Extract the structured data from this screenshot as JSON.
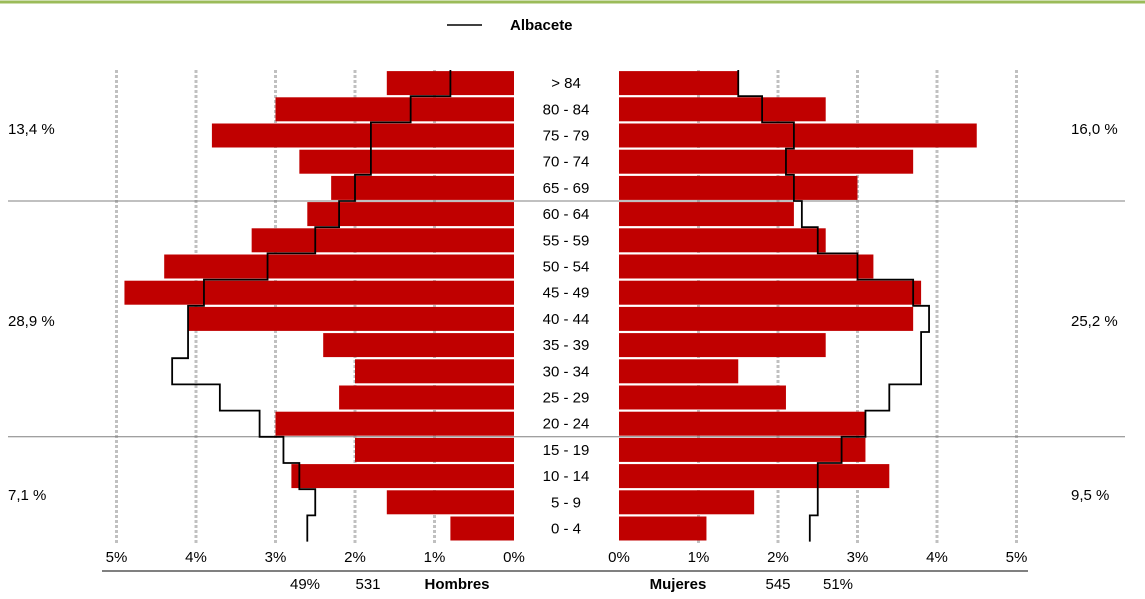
{
  "chart_data": {
    "type": "bar",
    "legend": {
      "label": "Albacete",
      "position": "top"
    },
    "age_groups": [
      "> 84",
      "80 - 84",
      "75 - 79",
      "70 - 74",
      "65 - 69",
      "60 - 64",
      "55 - 59",
      "50 - 54",
      "45 - 49",
      "40 - 44",
      "35 - 39",
      "30 - 34",
      "25 - 29",
      "20 - 24",
      "15 - 19",
      "10 - 14",
      "5 - 9",
      "0 - 4"
    ],
    "x_ticks_left": [
      "5%",
      "4%",
      "3%",
      "2%",
      "1%",
      "0%"
    ],
    "x_ticks_right": [
      "0%",
      "1%",
      "2%",
      "3%",
      "4%",
      "5%"
    ],
    "xlim": [
      0,
      5
    ],
    "grid": true,
    "series": [
      {
        "name": "Hombres",
        "side": "left",
        "values": [
          1.6,
          3.0,
          3.8,
          2.7,
          2.3,
          2.6,
          3.3,
          4.4,
          4.9,
          4.1,
          2.4,
          2.0,
          2.2,
          3.0,
          2.0,
          2.8,
          1.6,
          0.8
        ]
      },
      {
        "name": "Mujeres",
        "side": "right",
        "values": [
          1.5,
          2.6,
          4.5,
          3.7,
          3.0,
          2.2,
          2.6,
          3.2,
          3.8,
          3.7,
          2.6,
          1.5,
          2.1,
          3.1,
          3.1,
          3.4,
          1.7,
          1.1
        ]
      }
    ],
    "reference_series": [
      {
        "name": "Albacete",
        "side": "left",
        "values": [
          0.8,
          1.3,
          1.8,
          1.8,
          2.0,
          2.2,
          2.5,
          3.1,
          3.9,
          4.1,
          4.1,
          4.3,
          3.7,
          3.2,
          2.9,
          2.7,
          2.5,
          2.6
        ]
      },
      {
        "name": "Albacete",
        "side": "right",
        "values": [
          1.5,
          1.8,
          2.2,
          2.1,
          2.2,
          2.3,
          2.5,
          3.0,
          3.7,
          3.9,
          3.8,
          3.8,
          3.4,
          3.1,
          2.8,
          2.5,
          2.5,
          2.4
        ]
      }
    ],
    "group_percentages": {
      "left": [
        "13,4 %",
        "28,9 %",
        "7,1  %"
      ],
      "right": [
        "16,0 %",
        "25,2 %",
        "9,5  %"
      ]
    },
    "totals": {
      "hombres": {
        "label": "Hombres",
        "count": "531",
        "percent": "49%"
      },
      "mujeres": {
        "label": "Mujeres",
        "count": "545",
        "percent": "51%"
      }
    },
    "colors": {
      "bar": "#c00000",
      "line": "#000000",
      "grid": "#c0c0c0",
      "top_border": "#9bbb59",
      "divider": "#808080"
    }
  }
}
